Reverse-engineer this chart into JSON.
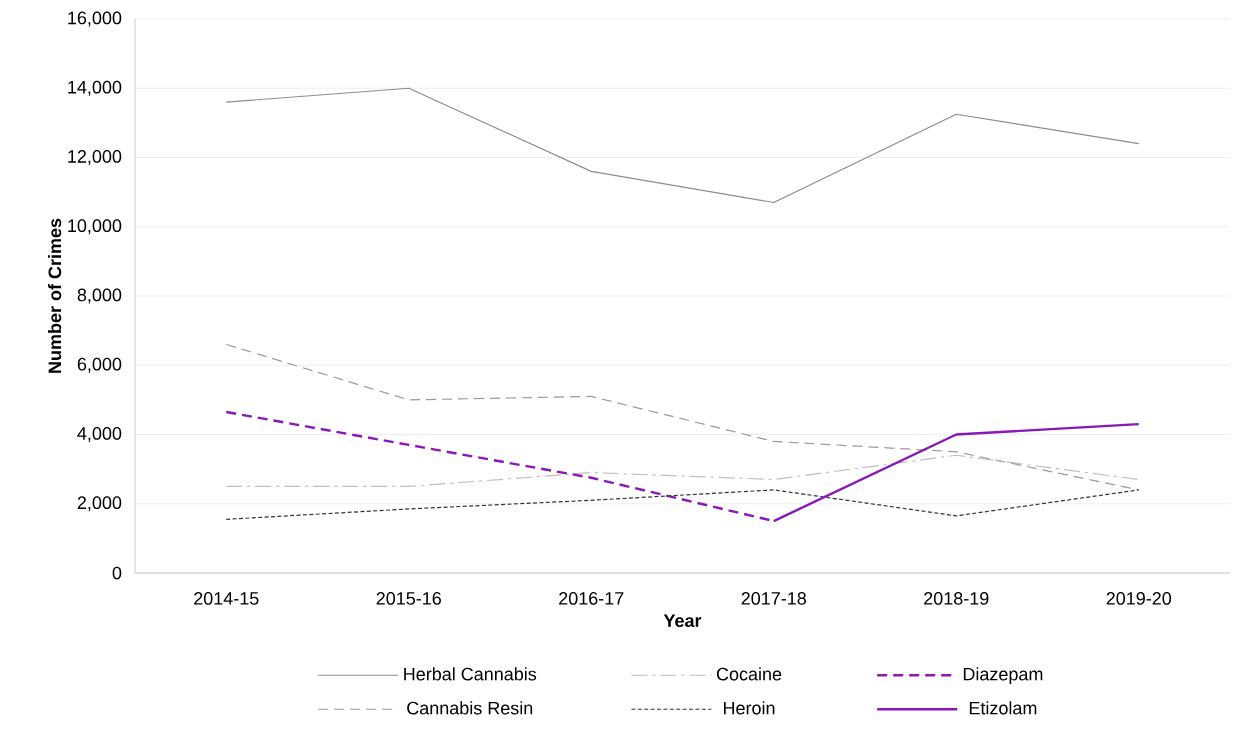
{
  "chart_data": {
    "type": "line",
    "xlabel": "Year",
    "ylabel": "Number of Crimes",
    "categories": [
      "2014-15",
      "2015-16",
      "2016-17",
      "2017-18",
      "2018-19",
      "2019-20"
    ],
    "series": [
      {
        "name": "Herbal Cannabis",
        "color": "#8c8c8c",
        "line_style": "solid",
        "values": [
          13600,
          14000,
          11600,
          10700,
          13250,
          12400
        ]
      },
      {
        "name": "Cocaine",
        "color": "#bfbfbf",
        "line_style": "dashdot",
        "values": [
          2500,
          2500,
          2900,
          2700,
          3400,
          2700
        ]
      },
      {
        "name": "Diazepam",
        "color": "#8a18b8",
        "line_style": "dashed",
        "values": [
          4650,
          3700,
          2750,
          1500,
          null,
          null
        ]
      },
      {
        "name": "Cannabis Resin",
        "color": "#9a9a9a",
        "line_style": "dashed",
        "values": [
          6600,
          5000,
          5100,
          3800,
          3500,
          2400
        ]
      },
      {
        "name": "Heroin",
        "color": "#333333",
        "line_style": "dotted",
        "values": [
          1550,
          1850,
          2100,
          2400,
          1650,
          2400
        ]
      },
      {
        "name": "Etizolam",
        "color": "#8a18b8",
        "line_style": "solid",
        "values": [
          null,
          null,
          null,
          1500,
          4000,
          4300
        ]
      }
    ],
    "ylim": [
      0,
      16000
    ],
    "yticks": [
      0,
      {
        "value": 2000,
        "label": "2,000"
      },
      {
        "value": 4000,
        "label": "4,000"
      },
      {
        "value": 6000,
        "label": "6,000"
      },
      {
        "value": 8000,
        "label": "8,000"
      },
      {
        "value": 10000,
        "label": "10,000"
      },
      {
        "value": 12000,
        "label": "12,000"
      },
      {
        "value": 14000,
        "label": "14,000"
      },
      {
        "value": 16000,
        "label": "16,000"
      }
    ],
    "grid": "y",
    "legend": "bottom",
    "marker": "none"
  }
}
